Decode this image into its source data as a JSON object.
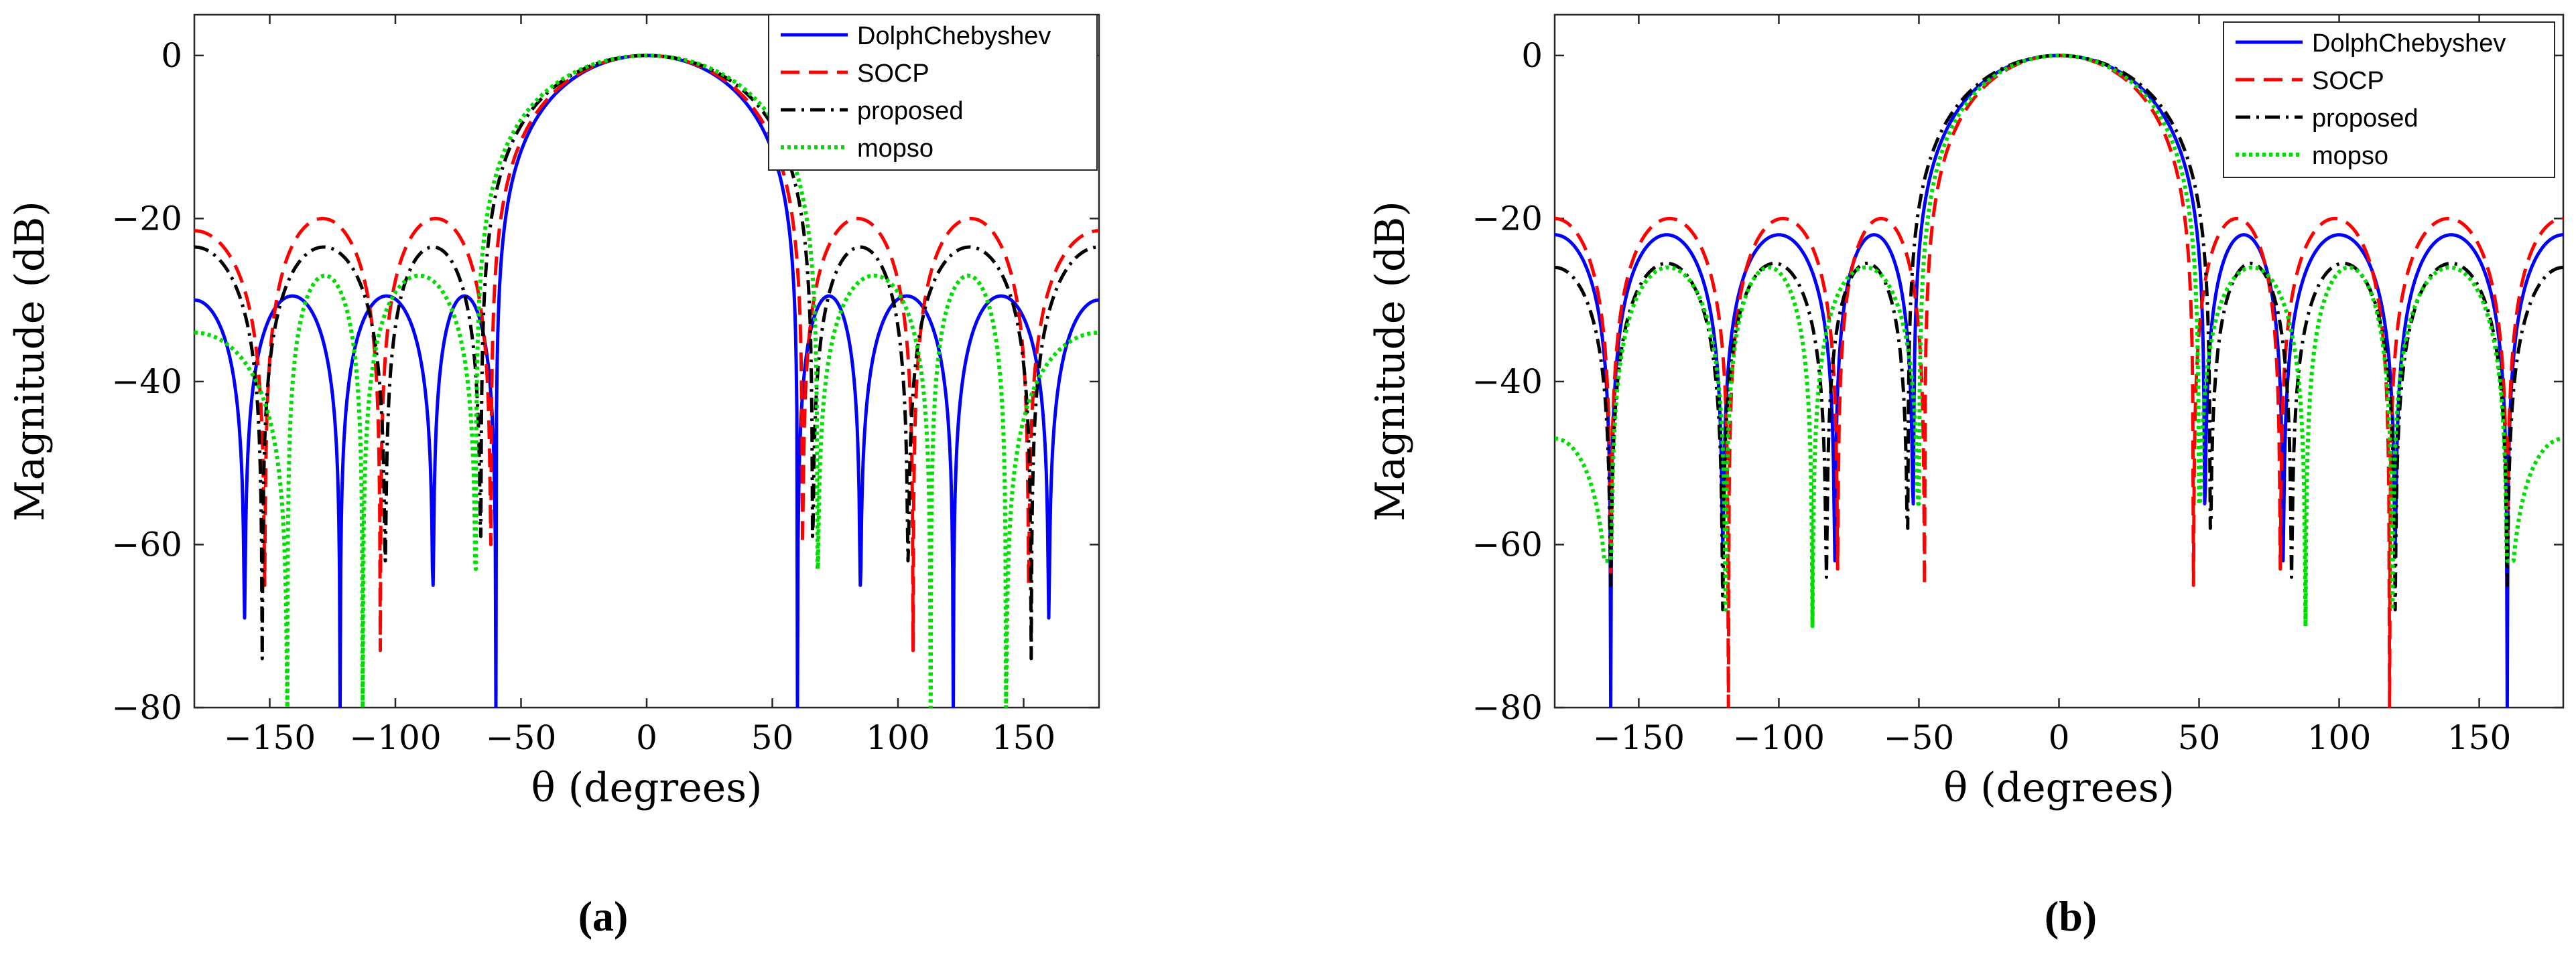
{
  "chart_data": [
    {
      "type": "line",
      "panel_label": "(a)",
      "xlabel": "θ (degrees)",
      "ylabel": "Magnitude (dB)",
      "xlim": [
        -180,
        180
      ],
      "ylim": [
        -80,
        5
      ],
      "xticks": [
        -150,
        -100,
        -50,
        0,
        50,
        100,
        150
      ],
      "yticks": [
        0,
        -20,
        -40,
        -60,
        -80
      ],
      "grid": false,
      "legend_position": "top-right",
      "series": [
        {
          "name": "DolphChebyshev",
          "color": "#0000ff",
          "dash": "solid",
          "sidelobe_db": -29.5,
          "lobe_edges_deg": [
            60,
            85,
            122,
            160
          ],
          "null_depths_db": [
            -80,
            -65,
            -80,
            -69
          ],
          "pad_db": -30
        },
        {
          "name": "SOCP",
          "color": "#ff0000",
          "dash": "dashed",
          "sidelobe_db": -20,
          "lobe_edges_deg": [
            62,
            106,
            152
          ],
          "null_depths_db": [
            -60,
            -73,
            -65
          ],
          "pad_db": -21.5
        },
        {
          "name": "proposed",
          "color": "#000000",
          "dash": "dashdot",
          "sidelobe_db": -23.5,
          "lobe_edges_deg": [
            66,
            104,
            153
          ],
          "null_depths_db": [
            -59,
            -62,
            -74
          ],
          "pad_db": -23.5
        },
        {
          "name": "mopso",
          "color": "#00dd00",
          "dash": "dotted",
          "sidelobe_db": -27,
          "lobe_edges_deg": [
            68,
            113,
            143
          ],
          "null_depths_db": [
            -63,
            -80,
            -80
          ],
          "pad_db": -34
        }
      ]
    },
    {
      "type": "line",
      "panel_label": "(b)",
      "xlabel": "θ (degrees)",
      "ylabel": "Magnitude (dB)",
      "xlim": [
        -180,
        180
      ],
      "ylim": [
        -80,
        5
      ],
      "xticks": [
        -150,
        -100,
        -50,
        0,
        50,
        100,
        150
      ],
      "yticks": [
        0,
        -20,
        -40,
        -60,
        -80
      ],
      "grid": false,
      "legend_position": "top-right",
      "series": [
        {
          "name": "DolphChebyshev",
          "color": "#0000ff",
          "dash": "solid",
          "sidelobe_db": -22,
          "lobe_edges_deg": [
            52,
            80,
            120,
            160
          ],
          "null_depths_db": [
            -55,
            -62,
            -60,
            -80
          ],
          "pad_db": -22
        },
        {
          "name": "SOCP",
          "color": "#ff0000",
          "dash": "dashed",
          "sidelobe_db": -20,
          "lobe_edges_deg": [
            48,
            79,
            118,
            160
          ],
          "null_depths_db": [
            -65,
            -63,
            -80,
            -65
          ],
          "pad_db": -20
        },
        {
          "name": "proposed",
          "color": "#000000",
          "dash": "dashdot",
          "sidelobe_db": -25.5,
          "lobe_edges_deg": [
            54,
            83,
            120,
            160
          ],
          "null_depths_db": [
            -58,
            -64,
            -68,
            -65
          ],
          "pad_db": -26
        },
        {
          "name": "mopso",
          "color": "#00dd00",
          "dash": "dotted",
          "sidelobe_db": -26,
          "lobe_edges_deg": [
            50,
            88,
            119,
            160
          ],
          "null_depths_db": [
            -55,
            -70,
            -68,
            -62
          ],
          "pad_db": -47
        }
      ]
    }
  ]
}
